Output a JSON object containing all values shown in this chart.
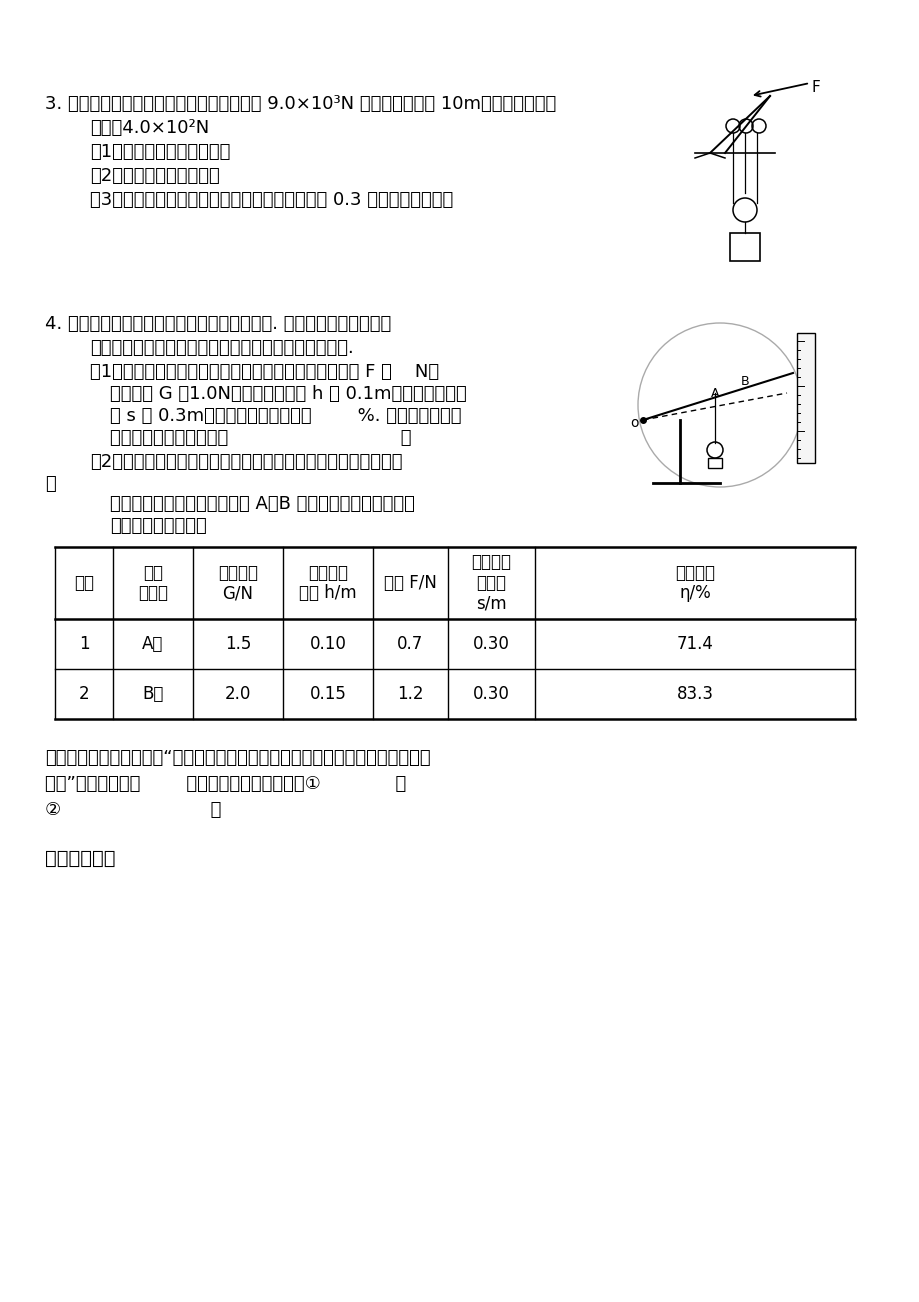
{
  "bg_color": "#ffffff",
  "text_color": "#000000",
  "q3_line1": "3. 如图所示，塔式起重机上的滑轮组将重为 9.0×10³N 的重物匀速吊起 10m、作用在绳端的",
  "q3_line2": "拉力为4.0×10²N",
  "q3_sub1": "（1）求提升重物做的有用功",
  "q3_sub2": "（2）求滑轮组的机械效率",
  "q3_sub3": "（3）若克服摩擦和钓丝绳重所做的功为有用功的 0.3 倍，求动滑轮的重",
  "q4_line1": "4. 用如图所示的实验装置测量杠杆的机械效率. 实验时，竖直向上匀速",
  "q4_line2": "拉动弹簧测力计，使挂在较长杠杆下面的钉码缓缓上升.",
  "q4_sub1_l1": "（1）实验中，将杠杆拉至图中虚线位置，测力计的示数 F 为    N，",
  "q4_sub1_l2": "钉码总重 G 为1.0N，鑉码上升高度 h 为 0.1m，测力计移动距",
  "q4_sub1_l3": "离 s 为 0.3m，则杠杆的机械效率为        %. 请写出使用该杠",
  "q4_sub1_l4": "杆做额外功的一个原因：                              。",
  "q4_sub2_l1": "（2）为了进一步研究杠杆的机械效率与哪些因素有关，一位同学",
  "q4_sub2_l2": "用",
  "q4_sub2_l3": "该实验装置，先后将鑉码挂在 A、B 两点，测量并计算得到下",
  "q4_sub2_l4": "表所示的两组数据：",
  "tbl_h0": "次数",
  "tbl_h1": "鑉码\n悬挂点",
  "tbl_h2": "鑉码总重\nG/N",
  "tbl_h3": "鑉码移动\n距离 h/m",
  "tbl_h4": "拉力 F/N",
  "tbl_h5": "测力计移\n动距离\ns/m",
  "tbl_h6": "机械效率\nη/%",
  "tbl_r1": [
    "1",
    "A点",
    "1.5",
    "0.10",
    "0.7",
    "0.30",
    "71.4"
  ],
  "tbl_r2": [
    "2",
    "B点",
    "2.0",
    "0.15",
    "1.2",
    "0.30",
    "83.3"
  ],
  "conc_l1": "根据表中数据，能否得出“杠杆的机械效率与所挂鑉码的重有关，鑉码越重其效率",
  "conc_l2": "越高”的结论？答：        ；请简要说明两条理由：①             ；",
  "conc_l3": "②                          。",
  "summary": "《总结提学》"
}
